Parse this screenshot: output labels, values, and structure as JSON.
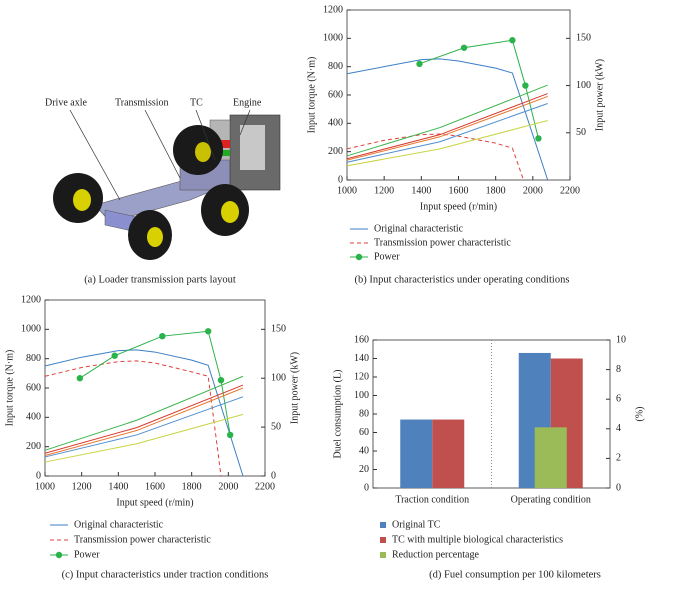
{
  "figure_a": {
    "labels": [
      "Drive axle",
      "Transmission",
      "TC",
      "Engine"
    ],
    "caption": "(a)  Loader transmission parts layout"
  },
  "chart_data": [
    {
      "type": "line",
      "caption": "(b)  Input characteristics under operating conditions",
      "x_label": "Input speed (r/min)",
      "y_label": "Input torque (N·m)",
      "y2_label": "Input power (kW)",
      "xlim": [
        1000,
        2200
      ],
      "xticks": [
        1000,
        1200,
        1400,
        1600,
        1800,
        2000,
        2200
      ],
      "ylim": [
        0,
        1200
      ],
      "yticks": [
        0,
        200,
        400,
        600,
        800,
        1000,
        1200
      ],
      "y2lim": [
        0,
        180
      ],
      "y2ticks": [
        50,
        100,
        150
      ],
      "series": [
        {
          "name": "Original characteristic",
          "color": "#3c7fc4",
          "x": [
            1000,
            1200,
            1400,
            1500,
            1600,
            1800,
            1890,
            2080
          ],
          "values": [
            750,
            800,
            850,
            855,
            840,
            790,
            755,
            0
          ]
        },
        {
          "name": "Transmission power characteristic",
          "color": "#e0403a",
          "dash": true,
          "x": [
            1000,
            1200,
            1400,
            1500,
            1600,
            1800,
            1890,
            1950
          ],
          "values": [
            220,
            280,
            320,
            325,
            310,
            260,
            225,
            0
          ]
        },
        {
          "name": "Power",
          "color": "#2ab34a",
          "marker": true,
          "axis": "y2",
          "x": [
            1390,
            1630,
            1890,
            1960,
            2030
          ],
          "values": [
            123,
            140,
            148,
            100,
            44
          ]
        },
        {
          "color": "#3cb44b",
          "x": [
            1000,
            1500,
            2080
          ],
          "values": [
            170,
            370,
            670
          ]
        },
        {
          "color": "#d83a2e",
          "x": [
            1000,
            1500,
            2080
          ],
          "values": [
            150,
            320,
            610
          ]
        },
        {
          "color": "#e8772e",
          "x": [
            1000,
            1500,
            2080
          ],
          "values": [
            140,
            305,
            590
          ]
        },
        {
          "color": "#4f8fd0",
          "x": [
            1000,
            1500,
            2080
          ],
          "values": [
            125,
            270,
            540
          ]
        },
        {
          "color": "#c8d440",
          "x": [
            1000,
            1500,
            2080
          ],
          "values": [
            100,
            220,
            420
          ]
        }
      ]
    },
    {
      "type": "line",
      "caption": "(c)  Input characteristics under traction conditions",
      "x_label": "Input speed (r/min)",
      "y_label": "Input torque (N·m)",
      "y2_label": "Input power (kW)",
      "xlim": [
        1000,
        2200
      ],
      "xticks": [
        1000,
        1200,
        1400,
        1600,
        1800,
        2000,
        2200
      ],
      "ylim": [
        0,
        1200
      ],
      "yticks": [
        0,
        200,
        400,
        600,
        800,
        1000,
        1200
      ],
      "y2lim": [
        0,
        180
      ],
      "y2ticks": [
        0,
        50,
        100,
        150
      ],
      "series": [
        {
          "name": "Original characteristic",
          "color": "#3c7fc4",
          "x": [
            1000,
            1200,
            1400,
            1500,
            1600,
            1800,
            1890,
            2080
          ],
          "values": [
            750,
            810,
            855,
            860,
            845,
            790,
            755,
            0
          ]
        },
        {
          "name": "Transmission power characteristic",
          "color": "#e0403a",
          "dash": true,
          "x": [
            1000,
            1200,
            1400,
            1500,
            1600,
            1800,
            1890,
            1960
          ],
          "values": [
            680,
            740,
            780,
            785,
            770,
            710,
            680,
            0
          ]
        },
        {
          "name": "Power",
          "color": "#2ab34a",
          "marker": true,
          "axis": "y2",
          "x": [
            1190,
            1380,
            1640,
            1890,
            1960,
            2010
          ],
          "values": [
            100,
            123,
            143,
            148,
            98,
            42
          ]
        },
        {
          "color": "#3cb44b",
          "x": [
            1000,
            1500,
            2080
          ],
          "values": [
            175,
            380,
            680
          ]
        },
        {
          "color": "#d83a2e",
          "x": [
            1000,
            1500,
            2080
          ],
          "values": [
            155,
            330,
            620
          ]
        },
        {
          "color": "#e8772e",
          "x": [
            1000,
            1500,
            2080
          ],
          "values": [
            140,
            310,
            600
          ]
        },
        {
          "color": "#4f8fd0",
          "x": [
            1000,
            1500,
            2080
          ],
          "values": [
            130,
            280,
            540
          ]
        },
        {
          "color": "#c8d440",
          "x": [
            1000,
            1500,
            2080
          ],
          "values": [
            95,
            220,
            420
          ]
        }
      ]
    },
    {
      "type": "bar",
      "caption": "(d)  Fuel consumption per 100 kilometers",
      "y_label": "Duel consumption (L)",
      "y2_label": "(%)",
      "categories": [
        "Traction condition",
        "Operating condition"
      ],
      "ylim": [
        0,
        160
      ],
      "yticks": [
        0,
        20,
        40,
        60,
        80,
        100,
        120,
        140,
        160
      ],
      "y2lim": [
        0,
        10
      ],
      "y2ticks": [
        0,
        2,
        4,
        6,
        8,
        10
      ],
      "series": [
        {
          "name": "Original TC",
          "color": "#4f81bd",
          "values": [
            74,
            146
          ]
        },
        {
          "name": "TC with multiple biological characteristics",
          "color": "#c0504d",
          "values": [
            74,
            140
          ]
        },
        {
          "name": "Reduction percentage",
          "color": "#9bbb59",
          "axis": "y2",
          "values": [
            null,
            4.1
          ]
        }
      ]
    }
  ]
}
